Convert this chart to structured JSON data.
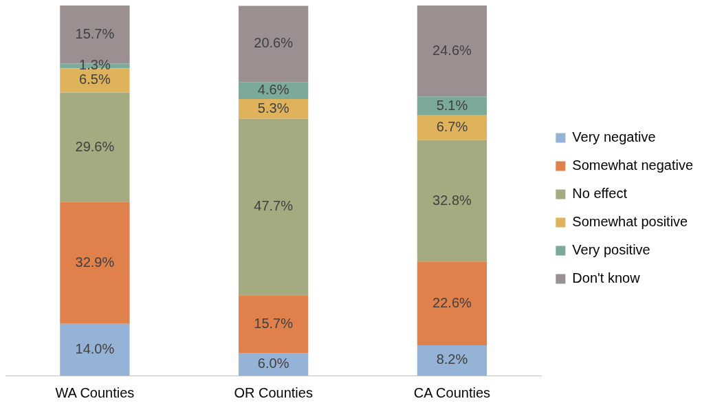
{
  "chart_data": {
    "type": "bar",
    "stacked": true,
    "legend": "right",
    "categories": [
      "WA Counties",
      "OR Counties",
      "CA Counties"
    ],
    "series": [
      {
        "name": "Very negative",
        "color": "#95b3d7",
        "values": [
          14.0,
          6.0,
          8.2
        ],
        "value_labels": [
          "14.0%",
          "6.0%",
          "8.2%"
        ]
      },
      {
        "name": "Somewhat negative",
        "color": "#e0804a",
        "values": [
          32.9,
          15.7,
          22.6
        ],
        "value_labels": [
          "32.9%",
          "15.7%",
          "22.6%"
        ]
      },
      {
        "name": "No effect",
        "color": "#a4ab81",
        "values": [
          29.6,
          47.7,
          32.8
        ],
        "value_labels": [
          "29.6%",
          "47.7%",
          "32.8%"
        ]
      },
      {
        "name": "Somewhat positive",
        "color": "#dfb35c",
        "values": [
          6.5,
          5.3,
          6.7
        ],
        "value_labels": [
          "6.5%",
          "5.3%",
          "6.7%"
        ]
      },
      {
        "name": "Very positive",
        "color": "#7bab98",
        "values": [
          1.3,
          4.6,
          5.1
        ],
        "value_labels": [
          "1.3%",
          "4.6%",
          "5.1%"
        ]
      },
      {
        "name": "Don't know",
        "color": "#9b8f8f",
        "values": [
          15.7,
          20.6,
          24.6
        ],
        "value_labels": [
          "15.7%",
          "20.6%",
          "24.6%"
        ]
      }
    ]
  }
}
